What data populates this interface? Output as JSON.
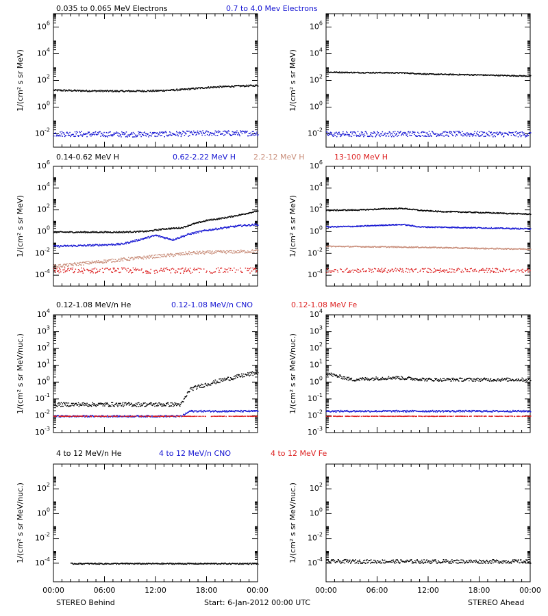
{
  "footer": {
    "left": "STEREO Behind",
    "center": "Start:  6-Jan-2012 00:00 UTC",
    "right": "STEREO Ahead"
  },
  "time_ticks": [
    "00:00",
    "06:00",
    "12:00",
    "18:00",
    "00:00"
  ],
  "colors": {
    "black": "#000000",
    "blue": "#1414d2",
    "brown": "#c88c78",
    "red": "#dc1e1e"
  },
  "chart_data": [
    {
      "type": "scatter",
      "name": "electrons-behind",
      "legend": [
        {
          "label": "0.035 to 0.065 MeV Electrons",
          "color": "black"
        },
        {
          "label": "0.7 to 4.0 Mev Electrons",
          "color": "blue"
        }
      ],
      "ylabel": "1/(cm² s sr MeV)",
      "log_y": true,
      "ylim_exp": [
        -3,
        7
      ],
      "ytick_exps": [
        -2,
        0,
        2,
        4,
        6
      ],
      "x_hours": [
        0,
        24
      ],
      "series": [
        {
          "color": "black",
          "pts": [
            [
              0,
              20.0
            ],
            [
              4,
              18.0
            ],
            [
              8,
              17.0
            ],
            [
              12,
              18.0
            ],
            [
              15,
              22.0
            ],
            [
              18,
              32.0
            ],
            [
              21,
              40.0
            ],
            [
              24,
              45.0
            ]
          ],
          "noise": 0.06
        },
        {
          "color": "blue",
          "pts": [
            [
              0,
              0.011
            ],
            [
              6,
              0.01
            ],
            [
              12,
              0.01
            ],
            [
              18,
              0.012
            ],
            [
              24,
              0.012
            ]
          ],
          "noise": 0.2
        }
      ]
    },
    {
      "type": "scatter",
      "name": "electrons-ahead",
      "ylabel": "1/(cm² s sr MeV)",
      "log_y": true,
      "ylim_exp": [
        -3,
        7
      ],
      "ytick_exps": [
        -2,
        0,
        2,
        4,
        6
      ],
      "x_hours": [
        0,
        24
      ],
      "series": [
        {
          "color": "black",
          "pts": [
            [
              0,
              450.0
            ],
            [
              4,
              420.0
            ],
            [
              9,
              400.0
            ],
            [
              12,
              320.0
            ],
            [
              18,
              280.0
            ],
            [
              24,
              230.0
            ]
          ],
          "noise": 0.04
        },
        {
          "color": "blue",
          "pts": [
            [
              0,
              0.01
            ],
            [
              12,
              0.011
            ],
            [
              24,
              0.01
            ]
          ],
          "noise": 0.2
        }
      ]
    },
    {
      "type": "scatter",
      "name": "protons-behind",
      "legend": [
        {
          "label": "0.14-0.62 MeV H",
          "color": "black"
        },
        {
          "label": "0.62-2.22 MeV H",
          "color": "blue"
        },
        {
          "label": "2.2-12 MeV H",
          "color": "brown"
        },
        {
          "label": "13-100 MeV H",
          "color": "red"
        }
      ],
      "ylabel": "1/(cm² s sr MeV)",
      "log_y": true,
      "ylim_exp": [
        -5,
        6
      ],
      "ytick_exps": [
        -4,
        -2,
        0,
        2,
        4,
        6
      ],
      "x_hours": [
        0,
        24
      ],
      "series": [
        {
          "color": "black",
          "pts": [
            [
              0,
              1.0
            ],
            [
              4,
              1.0
            ],
            [
              8,
              1.0
            ],
            [
              11,
              1.2
            ],
            [
              13,
              2.0
            ],
            [
              15,
              2.5
            ],
            [
              16.5,
              6
            ],
            [
              18,
              12
            ],
            [
              20,
              20
            ],
            [
              22,
              40
            ],
            [
              24,
              90
            ]
          ],
          "noise": 0.06
        },
        {
          "color": "blue",
          "pts": [
            [
              0,
              0.05
            ],
            [
              4,
              0.06
            ],
            [
              8,
              0.08
            ],
            [
              10,
              0.2
            ],
            [
              12,
              0.5
            ],
            [
              14,
              0.2
            ],
            [
              16,
              0.7
            ],
            [
              18,
              1.5
            ],
            [
              20,
              2.5
            ],
            [
              22,
              4
            ],
            [
              24,
              5
            ]
          ],
          "noise": 0.08
        },
        {
          "color": "brown",
          "pts": [
            [
              0,
              0.0007
            ],
            [
              4,
              0.0015
            ],
            [
              8,
              0.003
            ],
            [
              12,
              0.006
            ],
            [
              14,
              0.008
            ],
            [
              16,
              0.012
            ],
            [
              20,
              0.015
            ],
            [
              24,
              0.018
            ]
          ],
          "noise": 0.15
        },
        {
          "color": "red",
          "pts": [
            [
              0,
              0.0003
            ],
            [
              12,
              0.0003
            ],
            [
              24,
              0.0003
            ]
          ],
          "noise": 0.25
        }
      ]
    },
    {
      "type": "scatter",
      "name": "protons-ahead",
      "ylabel": "1/(cm² s sr MeV)",
      "log_y": true,
      "ylim_exp": [
        -5,
        6
      ],
      "ytick_exps": [
        -4,
        -2,
        0,
        2,
        4,
        6
      ],
      "x_hours": [
        0,
        24
      ],
      "series": [
        {
          "color": "black",
          "pts": [
            [
              0,
              100
            ],
            [
              4,
              110
            ],
            [
              7,
              140
            ],
            [
              9,
              150
            ],
            [
              11,
              100
            ],
            [
              13,
              80
            ],
            [
              16,
              70
            ],
            [
              19,
              60
            ],
            [
              22,
              50
            ],
            [
              24,
              45
            ]
          ],
          "noise": 0.05
        },
        {
          "color": "blue",
          "pts": [
            [
              0,
              3
            ],
            [
              4,
              3.5
            ],
            [
              7,
              4.5
            ],
            [
              9,
              5
            ],
            [
              11,
              3
            ],
            [
              14,
              2.8
            ],
            [
              18,
              2.5
            ],
            [
              21,
              2.2
            ],
            [
              24,
              2
            ]
          ],
          "noise": 0.05
        },
        {
          "color": "brown",
          "pts": [
            [
              0,
              0.05
            ],
            [
              6,
              0.045
            ],
            [
              12,
              0.04
            ],
            [
              18,
              0.032
            ],
            [
              24,
              0.028
            ]
          ],
          "noise": 0.05
        },
        {
          "color": "red",
          "pts": [
            [
              0,
              0.0003
            ],
            [
              12,
              0.0003
            ],
            [
              24,
              0.0003
            ]
          ],
          "noise": 0.2
        }
      ]
    },
    {
      "type": "scatter",
      "name": "heavy-behind",
      "legend": [
        {
          "label": "0.12-1.08 MeV/n He",
          "color": "black"
        },
        {
          "label": "0.12-1.08 MeV/n CNO",
          "color": "blue"
        },
        {
          "label": "0.12-1.08 MeV Fe",
          "color": "red"
        }
      ],
      "ylabel": "1/(cm² s sr MeV/nuc.)",
      "log_y": true,
      "ylim_exp": [
        -3,
        4
      ],
      "ytick_exps": [
        -3,
        -2,
        -1,
        0,
        1,
        2,
        3,
        4
      ],
      "x_hours": [
        0,
        24
      ],
      "series": [
        {
          "color": "black",
          "pts": [
            [
              0,
              0.05
            ],
            [
              15,
              0.05
            ],
            [
              16,
              0.4
            ],
            [
              18,
              0.8
            ],
            [
              20,
              1.5
            ],
            [
              22,
              2.5
            ],
            [
              24,
              4
            ]
          ],
          "noise": 0.12
        },
        {
          "color": "blue",
          "pts": [
            [
              0,
              0.01
            ],
            [
              15,
              0.01
            ],
            [
              16,
              0.02
            ],
            [
              24,
              0.02
            ]
          ],
          "noise": 0.05
        },
        {
          "color": "red",
          "pts": [
            [
              0,
              0.01
            ],
            [
              24,
              0.01
            ]
          ],
          "noise": 0.01
        }
      ]
    },
    {
      "type": "scatter",
      "name": "heavy-ahead",
      "ylabel": "1/(cm² s sr MeV/nuc.)",
      "log_y": true,
      "ylim_exp": [
        -3,
        4
      ],
      "ytick_exps": [
        -3,
        -2,
        -1,
        0,
        1,
        2,
        3,
        4
      ],
      "x_hours": [
        0,
        24
      ],
      "series": [
        {
          "color": "black",
          "pts": [
            [
              0,
              3.5
            ],
            [
              3,
              1.5
            ],
            [
              8,
              2
            ],
            [
              12,
              1.5
            ],
            [
              18,
              1.5
            ],
            [
              24,
              1.5
            ]
          ],
          "noise": 0.1
        },
        {
          "color": "blue",
          "pts": [
            [
              0,
              0.02
            ],
            [
              24,
              0.02
            ]
          ],
          "noise": 0.05
        },
        {
          "color": "red",
          "pts": [
            [
              0,
              0.01
            ],
            [
              24,
              0.01
            ]
          ],
          "noise": 0.01
        }
      ]
    },
    {
      "type": "scatter",
      "name": "energetic-behind",
      "legend": [
        {
          "label": "4 to 12 MeV/n He",
          "color": "black"
        },
        {
          "label": "4 to 12 MeV/n CNO",
          "color": "blue"
        },
        {
          "label": "4 to 12 MeV Fe",
          "color": "red"
        }
      ],
      "ylabel": "1/(cm² s sr MeV/nuc.)",
      "log_y": true,
      "ylim_exp": [
        -5.5,
        4
      ],
      "ytick_exps": [
        -4,
        -2,
        0,
        2
      ],
      "x_hours": [
        0,
        24
      ],
      "series": [
        {
          "color": "black",
          "pts": [
            [
              2,
              0.0001
            ],
            [
              24,
              0.0001
            ]
          ],
          "noise": 0.05
        }
      ]
    },
    {
      "type": "scatter",
      "name": "energetic-ahead",
      "ylabel": "1/(cm² s sr MeV/nuc.)",
      "log_y": true,
      "ylim_exp": [
        -5.5,
        4
      ],
      "ytick_exps": [
        -4,
        -2,
        0,
        2
      ],
      "x_hours": [
        0,
        24
      ],
      "series": [
        {
          "color": "black",
          "pts": [
            [
              0,
              0.00015
            ],
            [
              24,
              0.00015
            ]
          ],
          "noise": 0.15
        }
      ]
    }
  ]
}
